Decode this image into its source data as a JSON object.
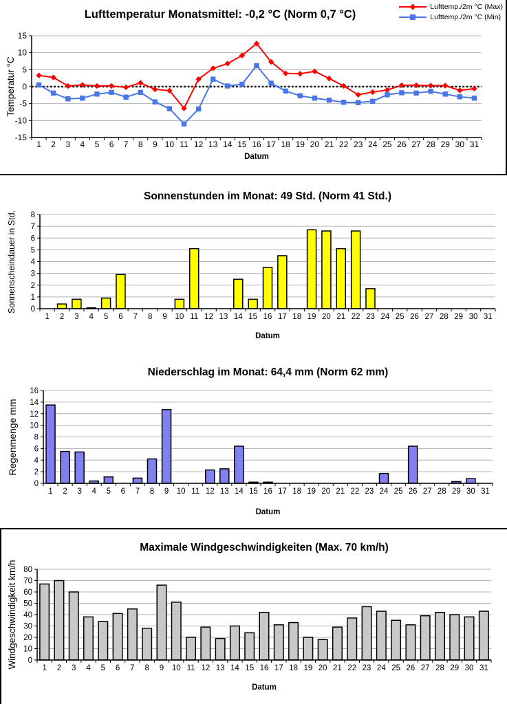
{
  "page": {
    "background": "#FFFFFF",
    "grid_color": "#B3B3B3",
    "axis_color": "#000000"
  },
  "chart_data": [
    {
      "type": "line",
      "title": "Lufttemperatur Monatsmittel: -0,2 °C (Norm 0,7 °C)",
      "xlabel": "Datum",
      "ylabel": "Temperatur °C",
      "ylim": [
        -15,
        15
      ],
      "ytick_step": 5,
      "grid": true,
      "legend_position": "top-right",
      "zero_line": "dotted-black",
      "categories": [
        1,
        2,
        3,
        4,
        5,
        6,
        7,
        8,
        9,
        10,
        11,
        12,
        13,
        14,
        15,
        16,
        17,
        18,
        19,
        20,
        21,
        22,
        23,
        24,
        25,
        26,
        27,
        28,
        29,
        30,
        31
      ],
      "series": [
        {
          "name": "Lufttemp./2m °C (Max)",
          "color": "#FF0000",
          "marker": "diamond",
          "values": [
            3.3,
            2.7,
            0.2,
            0.5,
            0.2,
            0.2,
            -0.2,
            1.1,
            -0.8,
            -1.2,
            -6.4,
            2.2,
            5.4,
            6.8,
            9.2,
            12.7,
            7.3,
            3.9,
            3.8,
            4.5,
            2.4,
            0.2,
            -2.4,
            -1.6,
            -1.0,
            0.4,
            0.4,
            0.3,
            0.3,
            -1.1,
            -0.6
          ]
        },
        {
          "name": "Lufttemp./2m °C (Min)",
          "color": "#4875E8",
          "marker": "square",
          "values": [
            0.5,
            -1.9,
            -3.6,
            -3.4,
            -2.2,
            -1.7,
            -3.1,
            -1.7,
            -4.5,
            -6.5,
            -11.0,
            -6.6,
            2.2,
            0.2,
            0.7,
            6.2,
            1.0,
            -1.3,
            -2.7,
            -3.4,
            -4.0,
            -4.6,
            -4.7,
            -4.3,
            -2.4,
            -1.8,
            -1.9,
            -1.4,
            -2.2,
            -3.0,
            -3.4
          ]
        }
      ]
    },
    {
      "type": "bar",
      "title": "Sonnenstunden im Monat: 49 Std. (Norm 41 Std.)",
      "xlabel": "Datum",
      "ylabel": "Sonnenscheindauer in Std.",
      "ylim": [
        0,
        8
      ],
      "ytick_step": 1,
      "grid": true,
      "bar_color": "#FFFF00",
      "bar_border": "#000000",
      "categories": [
        1,
        2,
        3,
        4,
        5,
        6,
        7,
        8,
        9,
        10,
        11,
        12,
        13,
        14,
        15,
        16,
        17,
        18,
        19,
        20,
        21,
        22,
        23,
        24,
        25,
        26,
        27,
        28,
        29,
        30,
        31
      ],
      "values": [
        0,
        0.4,
        0.8,
        0.05,
        0.9,
        2.9,
        0,
        0,
        0,
        0.8,
        5.1,
        0,
        0,
        2.5,
        0.8,
        3.5,
        4.5,
        0,
        6.7,
        6.6,
        5.1,
        6.6,
        1.7,
        0,
        0,
        0,
        0,
        0,
        0,
        0,
        0
      ]
    },
    {
      "type": "bar",
      "title": "Niederschlag im Monat: 64,4 mm (Norm 62 mm)",
      "xlabel": "Datum",
      "ylabel": "Regenmenge mm",
      "ylim": [
        0,
        16
      ],
      "ytick_step": 2,
      "grid": true,
      "bar_color": "#8080F0",
      "bar_border": "#000000",
      "categories": [
        1,
        2,
        3,
        4,
        5,
        6,
        7,
        8,
        9,
        10,
        11,
        12,
        13,
        14,
        15,
        16,
        17,
        18,
        19,
        20,
        21,
        22,
        23,
        24,
        25,
        26,
        27,
        28,
        29,
        30,
        31
      ],
      "values": [
        13.5,
        5.5,
        5.4,
        0.4,
        1.1,
        0,
        0.9,
        4.2,
        12.7,
        0,
        0,
        2.3,
        2.5,
        6.4,
        0.2,
        0.2,
        0,
        0,
        0,
        0,
        0,
        0,
        0,
        1.7,
        0,
        6.4,
        0,
        0,
        0.3,
        0.8,
        0
      ]
    },
    {
      "type": "bar",
      "title": "Maximale Windgeschwindigkeiten (Max. 70 km/h)",
      "xlabel": "Datum",
      "ylabel": "Windgeschwindigkeit km/h",
      "ylim": [
        0,
        80
      ],
      "ytick_step": 10,
      "grid": true,
      "bar_color": "#C8C8C8",
      "bar_border": "#000000",
      "categories": [
        1,
        2,
        3,
        4,
        5,
        6,
        7,
        8,
        9,
        10,
        11,
        12,
        13,
        14,
        15,
        16,
        17,
        18,
        19,
        20,
        21,
        22,
        23,
        24,
        25,
        26,
        27,
        28,
        29,
        30,
        31
      ],
      "values": [
        67,
        70,
        60,
        38,
        34,
        41,
        45,
        28,
        66,
        51,
        20,
        29,
        19,
        30,
        24,
        42,
        31,
        33,
        20,
        18,
        29,
        37,
        47,
        43,
        35,
        31,
        39,
        42,
        40,
        38,
        43
      ]
    }
  ]
}
